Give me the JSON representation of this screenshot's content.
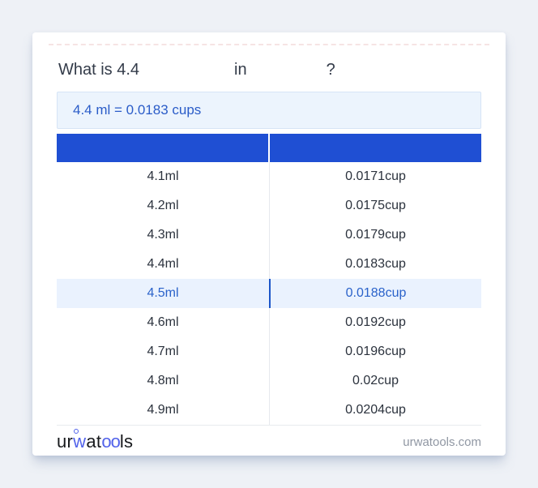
{
  "question": {
    "text_start": "What is 4.4",
    "text_middle": "in",
    "text_end": "?"
  },
  "result": {
    "text": "4.4 ml = 0.0183 cups"
  },
  "table": {
    "header_color": "#1f4fd3",
    "highlighted_index": 4,
    "rows": [
      {
        "ml": "4.1ml",
        "cup": "0.0171cup"
      },
      {
        "ml": "4.2ml",
        "cup": "0.0175cup"
      },
      {
        "ml": "4.3ml",
        "cup": "0.0179cup"
      },
      {
        "ml": "4.4ml",
        "cup": "0.0183cup"
      },
      {
        "ml": "4.5ml",
        "cup": "0.0188cup"
      },
      {
        "ml": "4.6ml",
        "cup": "0.0192cup"
      },
      {
        "ml": "4.7ml",
        "cup": "0.0196cup"
      },
      {
        "ml": "4.8ml",
        "cup": "0.02cup"
      },
      {
        "ml": "4.9ml",
        "cup": "0.0204cup"
      }
    ]
  },
  "footer": {
    "logo": {
      "p1": "ur",
      "p2": "w",
      "p3": "at",
      "p4": "oo",
      "p5": "ls"
    },
    "site": "urwatools.com"
  },
  "colors": {
    "page_bg": "#eef1f6",
    "accent_blue": "#1f4fd3",
    "highlight_bg": "#eaf2fe",
    "highlight_text": "#2a62ca",
    "highlight_divider": "#1b55c9",
    "result_bg": "#ecf4fd",
    "result_text": "#2a5cc8",
    "row_text": "#2b323d",
    "footer_text": "#9097a3",
    "logo_blue": "#5263ea"
  }
}
